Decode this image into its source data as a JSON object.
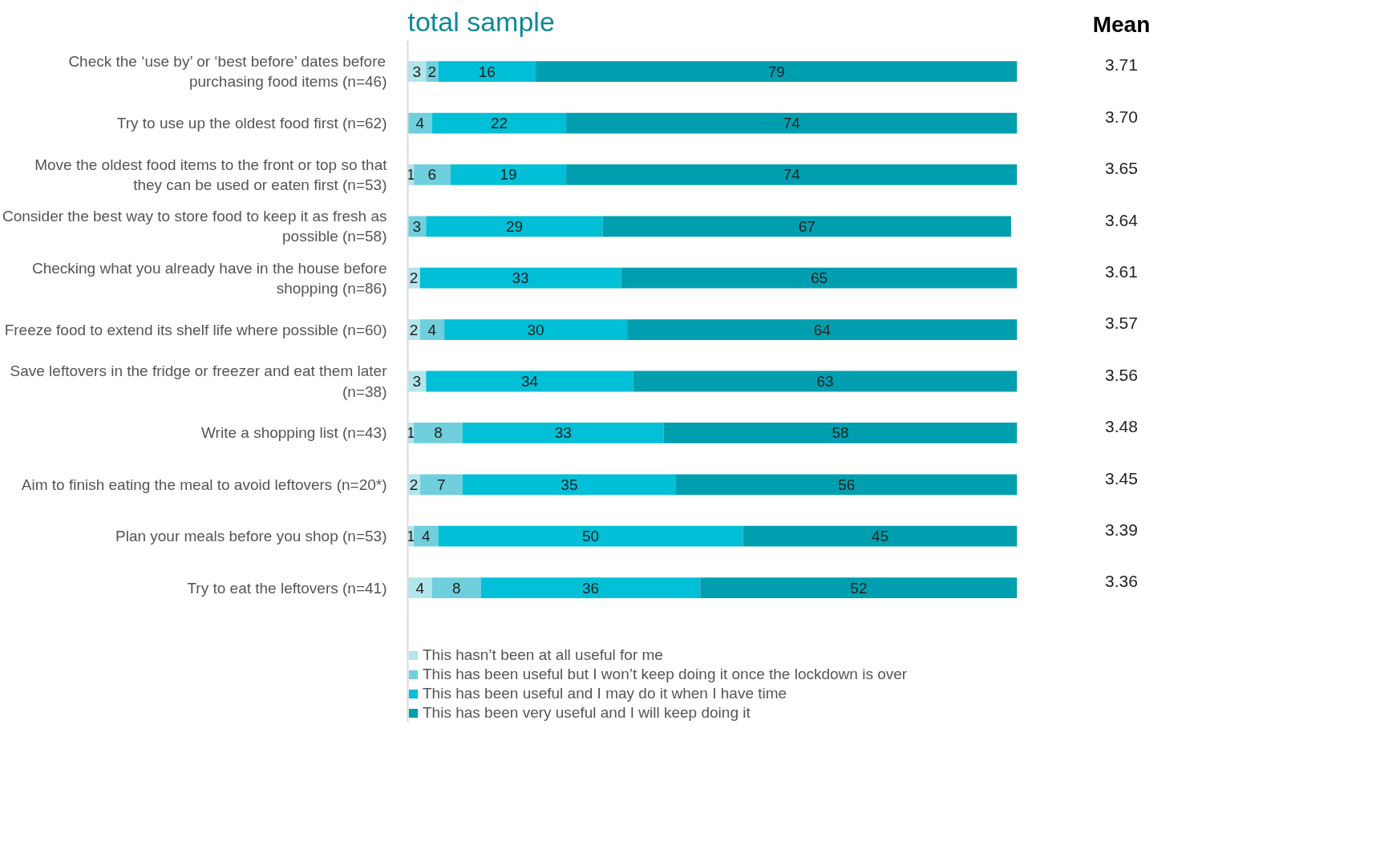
{
  "chart_data": {
    "type": "bar",
    "orientation": "horizontal",
    "stacked": true,
    "title": "total sample",
    "categories": [
      "Check the ‘use by’ or ‘best before’ dates before purchasing food items (n=46)",
      "Try to use up the oldest food first (n=62)",
      "Move the oldest food items to the front or top so that they can be used or eaten first (n=53)",
      "Consider the best way to store food to keep it as fresh as possible (n=58)",
      "Checking what you already have in the house before shopping (n=86)",
      "Freeze food to extend its shelf life where possible (n=60)",
      "Save leftovers in the fridge or freezer and eat them later (n=38)",
      "Write a shopping list (n=43)",
      "Aim to finish eating the meal to avoid leftovers (n=20*)",
      "Plan your meals before you shop (n=53)",
      "Try to eat the leftovers (n=41)"
    ],
    "series": [
      {
        "name": "This hasn’t been at all useful for me",
        "color": "#b3e6ec",
        "values": [
          3,
          0,
          1,
          0,
          2,
          2,
          3,
          1,
          2,
          1,
          4
        ],
        "value_labels": [
          "3",
          null,
          "1",
          null,
          "2",
          "2",
          "3",
          "1",
          "2",
          "1",
          "4"
        ]
      },
      {
        "name": "This has been useful but I won’t keep doing it once the lockdown is over",
        "color": "#6fcfdc",
        "values": [
          2,
          4,
          6,
          3,
          0,
          4,
          0,
          8,
          7,
          4,
          8
        ],
        "value_labels": [
          "2",
          "4",
          "6",
          "3",
          null,
          "4",
          null,
          "8",
          "7",
          "4",
          "8"
        ]
      },
      {
        "name": "This has been useful and I may do it when I have time",
        "color": "#00bfd6",
        "values": [
          16,
          22,
          19,
          29,
          33,
          30,
          34,
          33,
          35,
          50,
          36
        ],
        "value_labels": [
          "16",
          "22",
          "19",
          "29",
          "33",
          "30",
          "34",
          "33",
          "35",
          "50",
          "36"
        ]
      },
      {
        "name": "This has been very useful and I will keep doing it",
        "color": "#009fb0",
        "values": [
          79,
          74,
          74,
          67,
          65,
          64,
          63,
          58,
          56,
          45,
          52
        ],
        "value_labels": [
          "79",
          "74",
          "74",
          "67",
          "65",
          "64",
          "63",
          "58",
          "56",
          "45",
          "52"
        ]
      }
    ],
    "xlim": [
      0,
      100
    ],
    "tick_labels": "y",
    "grid": false,
    "legend": "bottom",
    "annotations": [
      "Mean",
      "3.71",
      "3.70",
      "3.65",
      "3.64",
      "3.61",
      "3.57",
      "3.56",
      "3.48",
      "3.45",
      "3.39",
      "3.36"
    ]
  }
}
